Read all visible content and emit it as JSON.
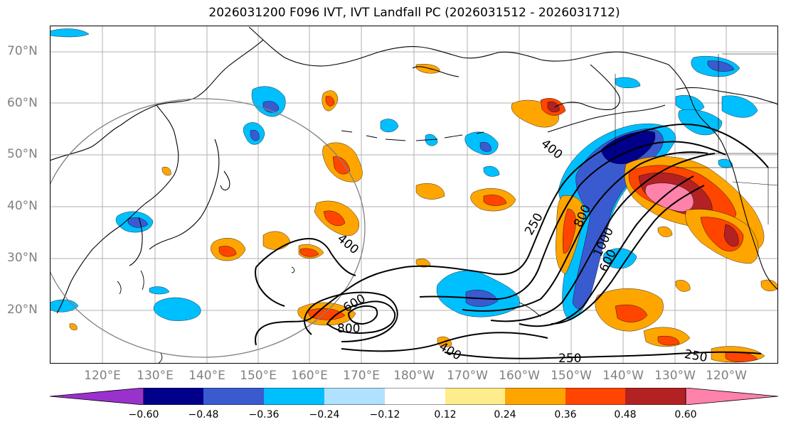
{
  "title": "2026031200 F096 IVT, IVT Landfall PC (2026031512 - 2026031712)",
  "lat_labels": [
    "70°N",
    "60°N",
    "50°N",
    "40°N",
    "30°N",
    "20°N"
  ],
  "lon_labels": [
    "120°E",
    "130°E",
    "140°E",
    "150°E",
    "160°E",
    "170°E",
    "180°W",
    "170°W",
    "160°W",
    "150°W",
    "140°W",
    "130°W",
    "120°W"
  ],
  "contour_labels": [
    "250",
    "400",
    "600",
    "800",
    "1000",
    "400",
    "600",
    "800",
    "400",
    "250",
    "250"
  ],
  "colorbar": {
    "ticks": [
      "−0.60",
      "−0.48",
      "−0.36",
      "−0.24",
      "−0.12",
      "0.12",
      "0.24",
      "0.36",
      "0.48",
      "0.60"
    ],
    "colors": [
      "#9932cc",
      "#00008b",
      "#3a5bd0",
      "#00bfff",
      "#b0e2ff",
      "#ffffff",
      "#ffec8b",
      "#ffa500",
      "#ff4500",
      "#b22222",
      "#ff82ab",
      "#ff82ab"
    ]
  }
}
